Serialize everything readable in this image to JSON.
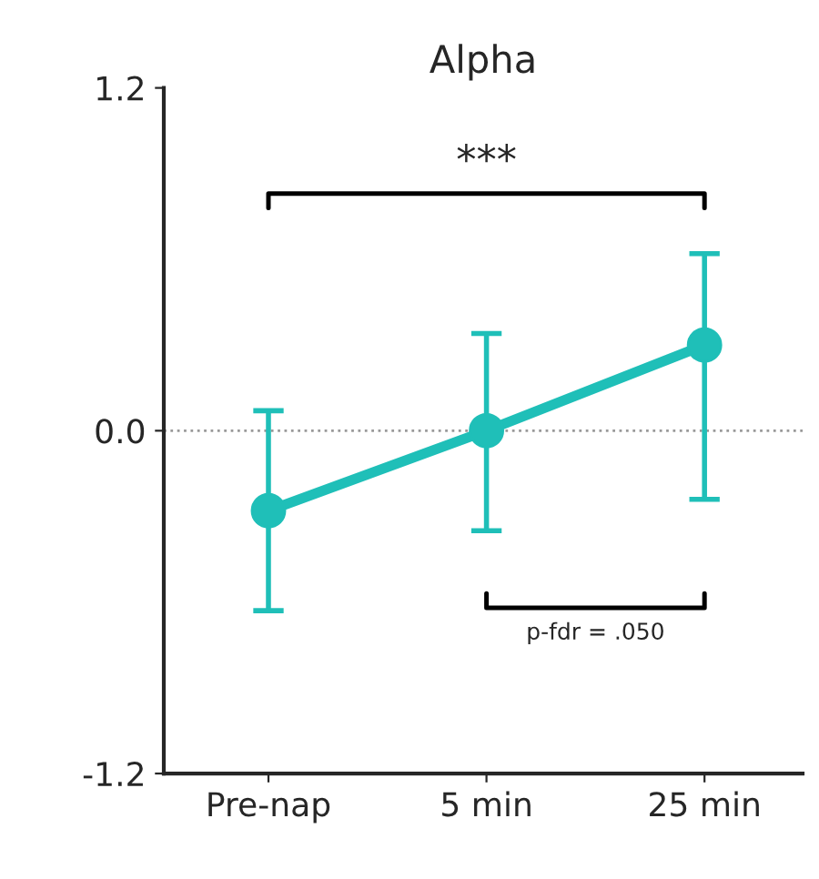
{
  "chart_data": {
    "type": "line",
    "title": "Alpha",
    "categories": [
      "Pre-nap",
      "5 min",
      "25 min"
    ],
    "series": [
      {
        "color": "#1fbfb8",
        "values": [
          -0.28,
          0.0,
          0.3
        ],
        "errors": [
          [
            -0.63,
            0.07
          ],
          [
            -0.35,
            0.34
          ],
          [
            -0.24,
            0.62
          ]
        ]
      }
    ],
    "ylim": [
      -1.2,
      1.2
    ],
    "yticks": [
      {
        "value": -1.2,
        "label": "-1.2"
      },
      {
        "value": 0.0,
        "label": "0.0"
      },
      {
        "value": 1.2,
        "label": "1.2"
      }
    ],
    "ref_lines": [
      {
        "axis": "y",
        "value": 0.0,
        "color": "#999999",
        "line_style": "dotted"
      }
    ],
    "annotations": [
      "***",
      "p-fdr = .050"
    ],
    "marker": "circle",
    "line_style": "solid",
    "grid": false,
    "legend": false
  }
}
